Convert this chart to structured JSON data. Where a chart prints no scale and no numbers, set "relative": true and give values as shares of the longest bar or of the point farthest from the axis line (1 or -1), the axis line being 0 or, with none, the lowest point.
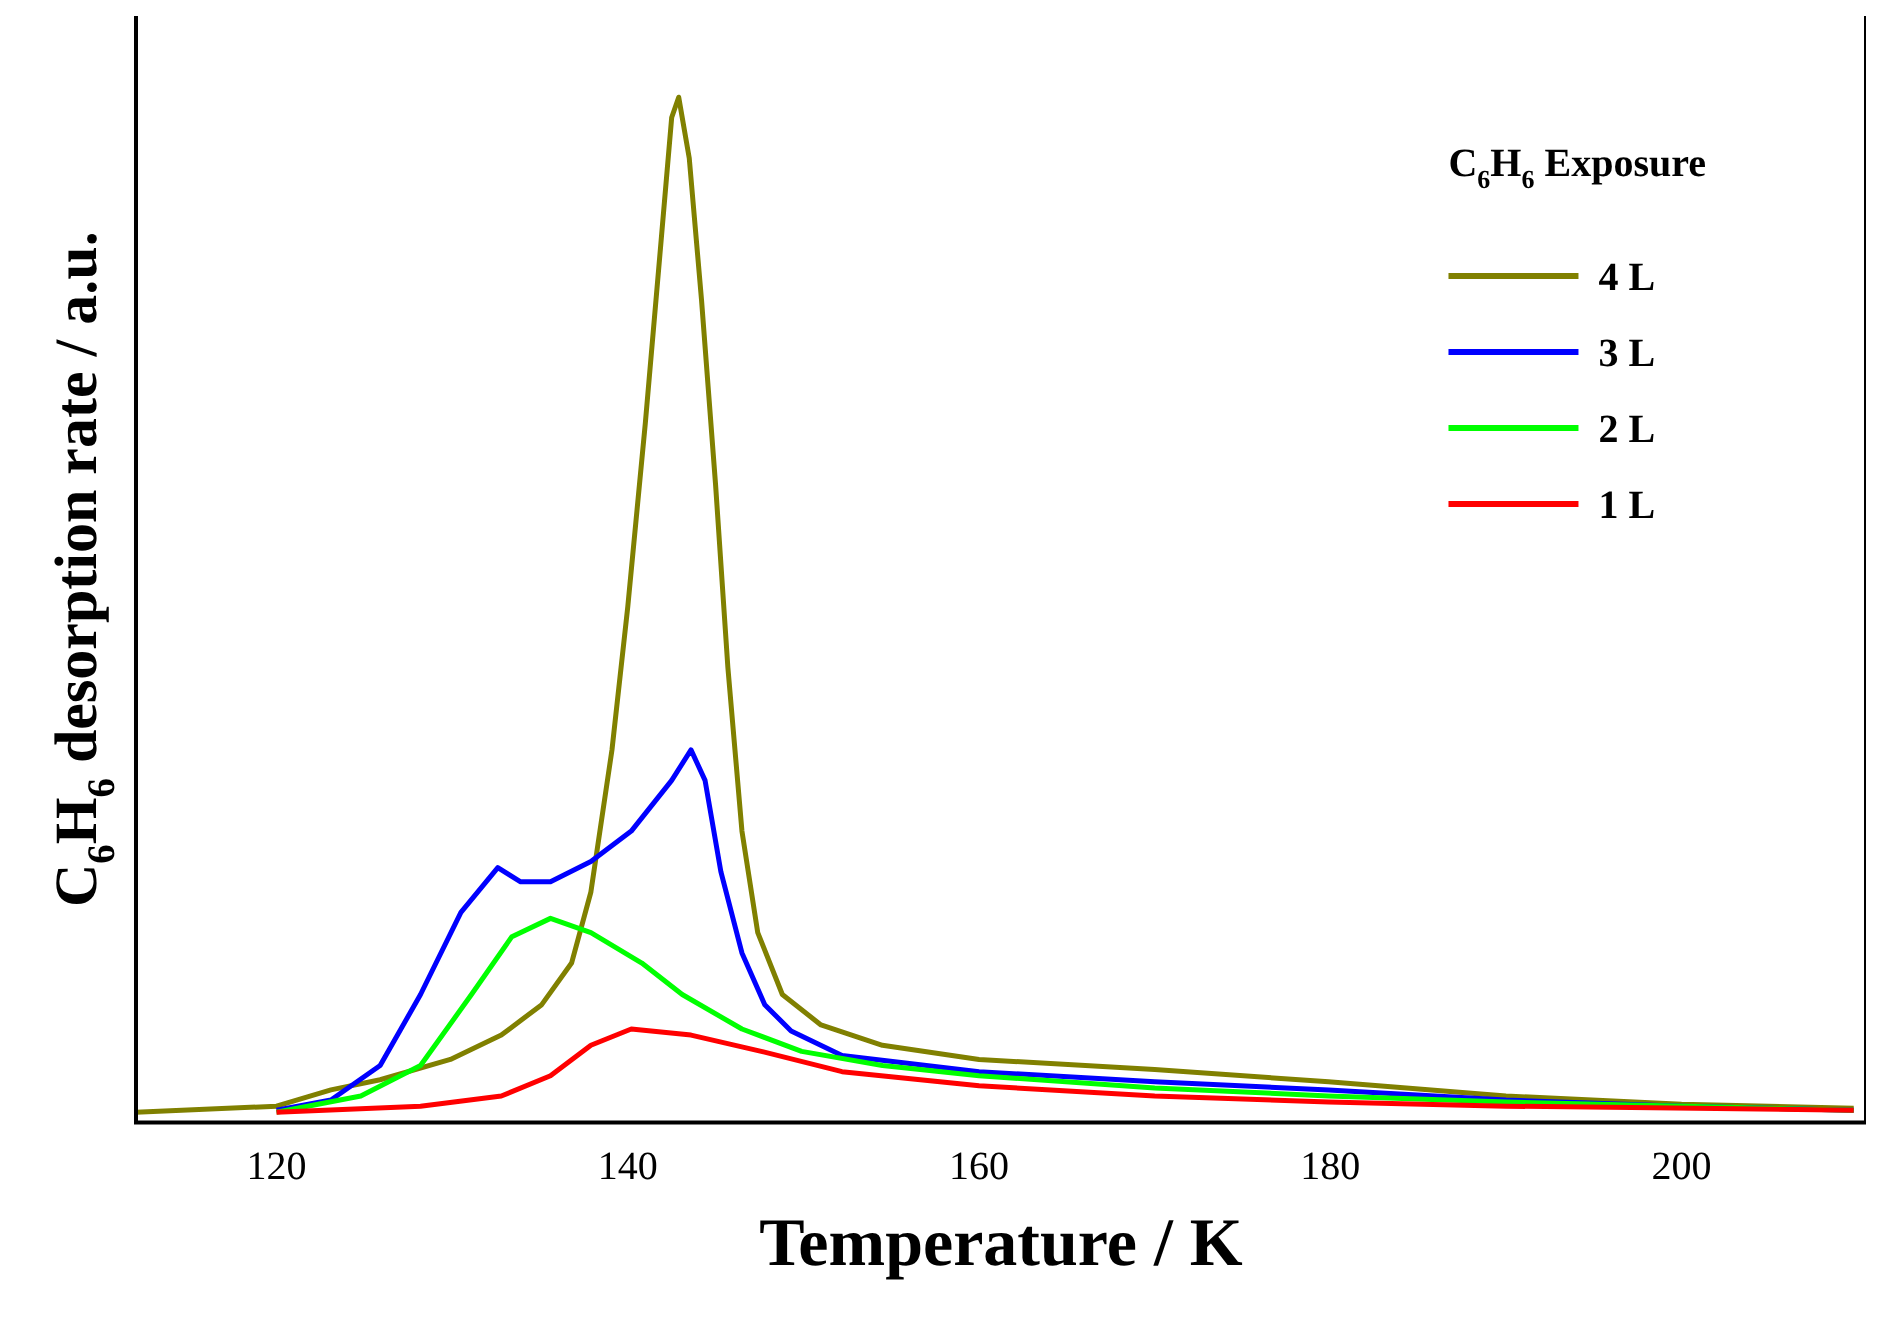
{
  "chart_data": {
    "type": "line",
    "relative": true,
    "xlabel": "Temperature / K",
    "ylabel": "C$_{6}$H$_{6}$ desorption rate / a.u.",
    "legend_title": "C$_{6}$H$_{6}$ Exposure",
    "legend": "top right",
    "tick_labels": "x",
    "grid": false,
    "marker": "none",
    "line_style": "solid",
    "xlim": [
      112,
      210.5
    ],
    "xticks": [
      120,
      140,
      160,
      180,
      200
    ],
    "series": [
      {
        "name": "4 L",
        "color": "#808000",
        "x": [
          112,
          120,
          123.1,
          125.9,
          129.9,
          132.8,
          135.1,
          136.8,
          137.9,
          139.1,
          140,
          141,
          141.9,
          142.5,
          142.9,
          143.5,
          144.2,
          145,
          145.7,
          146.5,
          147.4,
          148.8,
          151,
          154.5,
          160,
          170,
          179.9,
          190,
          200,
          209.8
        ],
        "values": [
          0,
          0.006,
          0.022,
          0.032,
          0.052,
          0.076,
          0.106,
          0.147,
          0.217,
          0.357,
          0.498,
          0.679,
          0.859,
          0.98,
          1,
          0.94,
          0.8,
          0.618,
          0.438,
          0.277,
          0.177,
          0.116,
          0.086,
          0.066,
          0.052,
          0.042,
          0.03,
          0.016,
          0.008,
          0.004
        ]
      },
      {
        "name": "3 L",
        "color": "#0000ff",
        "x": [
          120,
          123.1,
          125.9,
          128.2,
          130.5,
          132.6,
          133.9,
          135.6,
          137.9,
          140.2,
          142.5,
          143.6,
          144.4,
          145.3,
          146.5,
          147.8,
          149.3,
          152.2,
          160,
          170,
          179.9,
          190,
          200,
          209.8
        ],
        "values": [
          0.002,
          0.012,
          0.046,
          0.116,
          0.197,
          0.241,
          0.227,
          0.227,
          0.247,
          0.277,
          0.327,
          0.357,
          0.327,
          0.237,
          0.157,
          0.106,
          0.08,
          0.056,
          0.04,
          0.03,
          0.022,
          0.012,
          0.006,
          0.002
        ]
      },
      {
        "name": "2 L",
        "color": "#00ff00",
        "x": [
          120,
          124.8,
          128.2,
          131.1,
          133.4,
          135.6,
          137.9,
          140.8,
          143.1,
          146.5,
          149.9,
          154.5,
          160,
          170,
          179.9,
          190,
          209.8
        ],
        "values": [
          0,
          0.016,
          0.046,
          0.116,
          0.173,
          0.191,
          0.177,
          0.147,
          0.116,
          0.082,
          0.06,
          0.046,
          0.036,
          0.024,
          0.016,
          0.01,
          0.002
        ]
      },
      {
        "name": "1 L",
        "color": "#ff0000",
        "x": [
          120,
          128.2,
          132.8,
          135.6,
          137.9,
          140.2,
          143.6,
          147.6,
          152.2,
          160,
          170,
          179.9,
          190,
          209.8
        ],
        "values": [
          0,
          0.006,
          0.016,
          0.036,
          0.066,
          0.082,
          0.076,
          0.06,
          0.04,
          0.026,
          0.016,
          0.01,
          0.006,
          0.002
        ]
      }
    ]
  }
}
